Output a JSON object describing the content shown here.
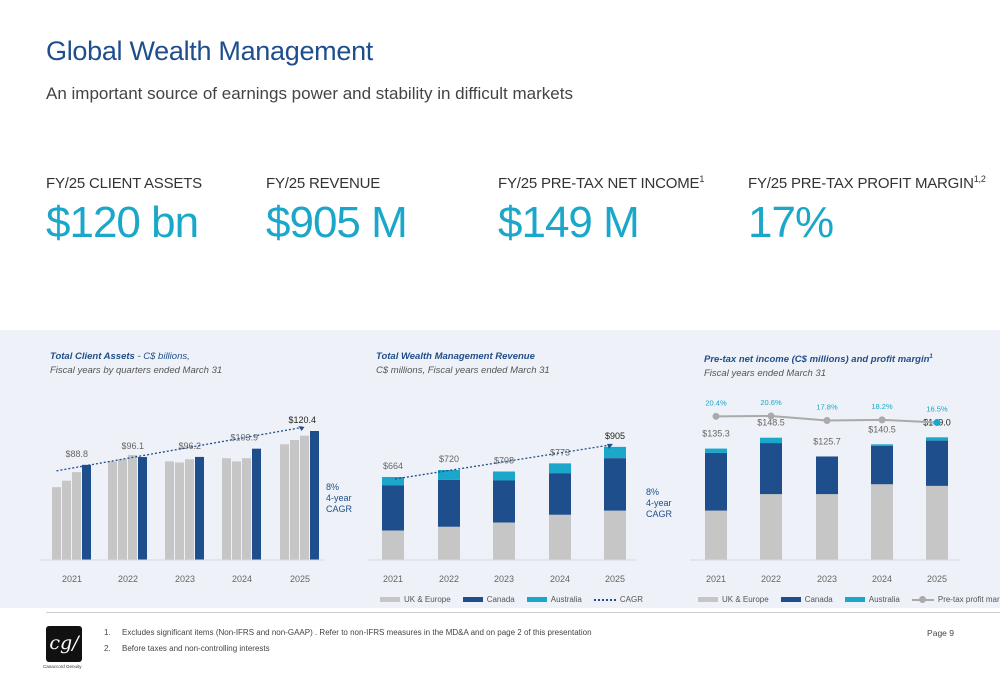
{
  "header": {
    "title": "Global Wealth Management",
    "subtitle": "An important source of earnings power and stability in difficult markets"
  },
  "kpis": [
    {
      "label": "FY/25 CLIENT ASSETS",
      "sup": "",
      "value": "$120 bn"
    },
    {
      "label": "FY/25 REVENUE",
      "sup": "",
      "value": "$905 M"
    },
    {
      "label": "FY/25 PRE-TAX NET INCOME",
      "sup": "1",
      "value": "$149 M"
    },
    {
      "label": "FY/25 PRE-TAX PROFIT MARGIN",
      "sup": "1,2",
      "value": "17%"
    }
  ],
  "colors": {
    "title_blue": "#1f4e8c",
    "accent_cyan": "#1aa7c9",
    "uk_europe_gray": "#c6c6c6",
    "canada_navy": "#1f4e8c",
    "australia_cyan": "#1aa7c9",
    "client_assets_bar": "#1f4e8c",
    "band_bg": "#eef1f7"
  },
  "chart_data": [
    {
      "type": "bar",
      "title": "Total Client Assets",
      "title_suffix": "- C$ billions,",
      "subtitle": "Fiscal years by quarters ended March 31",
      "categories": [
        "2021",
        "2022",
        "2023",
        "2024",
        "2025"
      ],
      "quarters": [
        [
          68,
          74,
          82,
          88.8
        ],
        [
          92,
          94,
          98,
          96.1
        ],
        [
          92,
          91,
          94,
          96.2
        ],
        [
          95,
          92,
          95,
          103.9
        ],
        [
          108,
          112,
          116,
          120.4
        ]
      ],
      "labels": [
        "$88.8",
        "$96.1",
        "$96.2",
        "$103.9",
        "$120.4"
      ],
      "ylim": [
        0,
        140
      ],
      "annotation": [
        "8%",
        "4-year",
        "CAGR"
      ]
    },
    {
      "type": "bar",
      "stacked": true,
      "title": "Total Wealth Management Revenue",
      "subtitle": "C$ millions, Fiscal years ended March 31",
      "categories": [
        "2021",
        "2022",
        "2023",
        "2024",
        "2025"
      ],
      "series": [
        {
          "name": "UK & Europe",
          "values": [
            236,
            266,
            300,
            362,
            395
          ]
        },
        {
          "name": "Canada",
          "values": [
            360,
            376,
            336,
            333,
            420
          ]
        },
        {
          "name": "Australia",
          "values": [
            68,
            78,
            72,
            78,
            90
          ]
        }
      ],
      "totals": [
        "$664",
        "$720",
        "$708",
        "$773",
        "$905"
      ],
      "ylim": [
        0,
        1000
      ],
      "annotation": [
        "8%",
        "4-year",
        "CAGR"
      ],
      "legend": [
        "UK & Europe",
        "Canada",
        "Australia",
        "CAGR"
      ]
    },
    {
      "type": "bar",
      "stacked": true,
      "title": "Pre-tax net income (C$ millions) and profit margin",
      "title_sup": "1",
      "subtitle": "Fiscal years ended March 31",
      "categories": [
        "2021",
        "2022",
        "2023",
        "2024",
        "2025"
      ],
      "series": [
        {
          "name": "UK & Europe",
          "values": [
            60,
            80,
            80,
            92,
            90
          ]
        },
        {
          "name": "Canada",
          "values": [
            70,
            62,
            45.7,
            46.5,
            55
          ]
        },
        {
          "name": "Australia",
          "values": [
            5.3,
            6.5,
            0,
            2,
            4
          ]
        }
      ],
      "totals": [
        "$135.3",
        "$148.5",
        "$125.7",
        "$140.5",
        "$149.0"
      ],
      "margin": {
        "name": "Pre-tax profit margin",
        "values": [
          20.4,
          20.6,
          17.8,
          18.2,
          16.5
        ],
        "labels": [
          "20.4%",
          "20.6%",
          "17.8%",
          "18.2%",
          "16.5%"
        ]
      },
      "ylim": [
        0,
        170
      ],
      "legend": [
        "UK & Europe",
        "Canada",
        "Australia",
        "Pre-tax profit margin"
      ]
    }
  ],
  "footer": {
    "logo_text": "cg/",
    "logo_caption": "Canaccord Genuity",
    "notes": [
      {
        "num": "1.",
        "text": "Excludes significant items (Non-IFRS and non-GAAP) . Refer to non-IFRS measures in the MD&A and on page 2 of this presentation"
      },
      {
        "num": "2.",
        "text": "Before taxes and non-controlling interests"
      }
    ],
    "page": "Page 9"
  }
}
